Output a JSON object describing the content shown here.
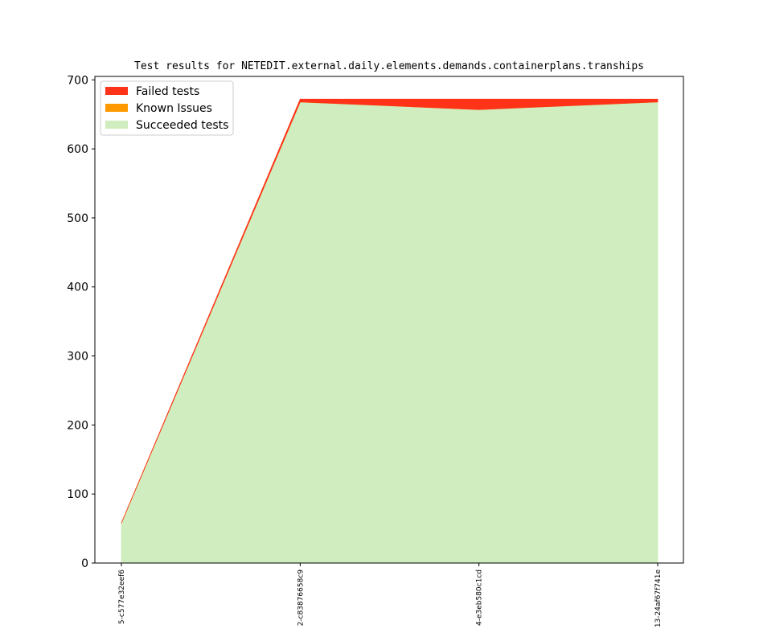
{
  "chart_data": {
    "type": "area",
    "stacked": true,
    "title": "Test results for NETEDIT.external.daily.elements.demands.containerplans.tranships",
    "xlabel": "",
    "ylabel": "",
    "categories": [
      "5-c577e32eef6",
      "2-c83876658c9",
      "4-e3eb580c1cd",
      "13-24af67f741e"
    ],
    "ylim": [
      0,
      705
    ],
    "yticks": [
      0,
      100,
      200,
      300,
      400,
      500,
      600,
      700
    ],
    "grid": false,
    "legend_position": "top-left",
    "series": [
      {
        "name": "Succeeded tests",
        "color": "#cfedbe",
        "values": [
          58,
          668,
          657,
          668
        ]
      },
      {
        "name": "Known Issues",
        "color": "#ff9900",
        "values": [
          0,
          0,
          0,
          0
        ]
      },
      {
        "name": "Failed tests",
        "color": "#ff3318",
        "values": [
          0,
          4,
          15,
          4
        ]
      }
    ],
    "legend": [
      {
        "label": "Failed tests",
        "color": "#ff3318"
      },
      {
        "label": "Known Issues",
        "color": "#ff9900"
      },
      {
        "label": "Succeeded tests",
        "color": "#cfedbe"
      }
    ]
  }
}
